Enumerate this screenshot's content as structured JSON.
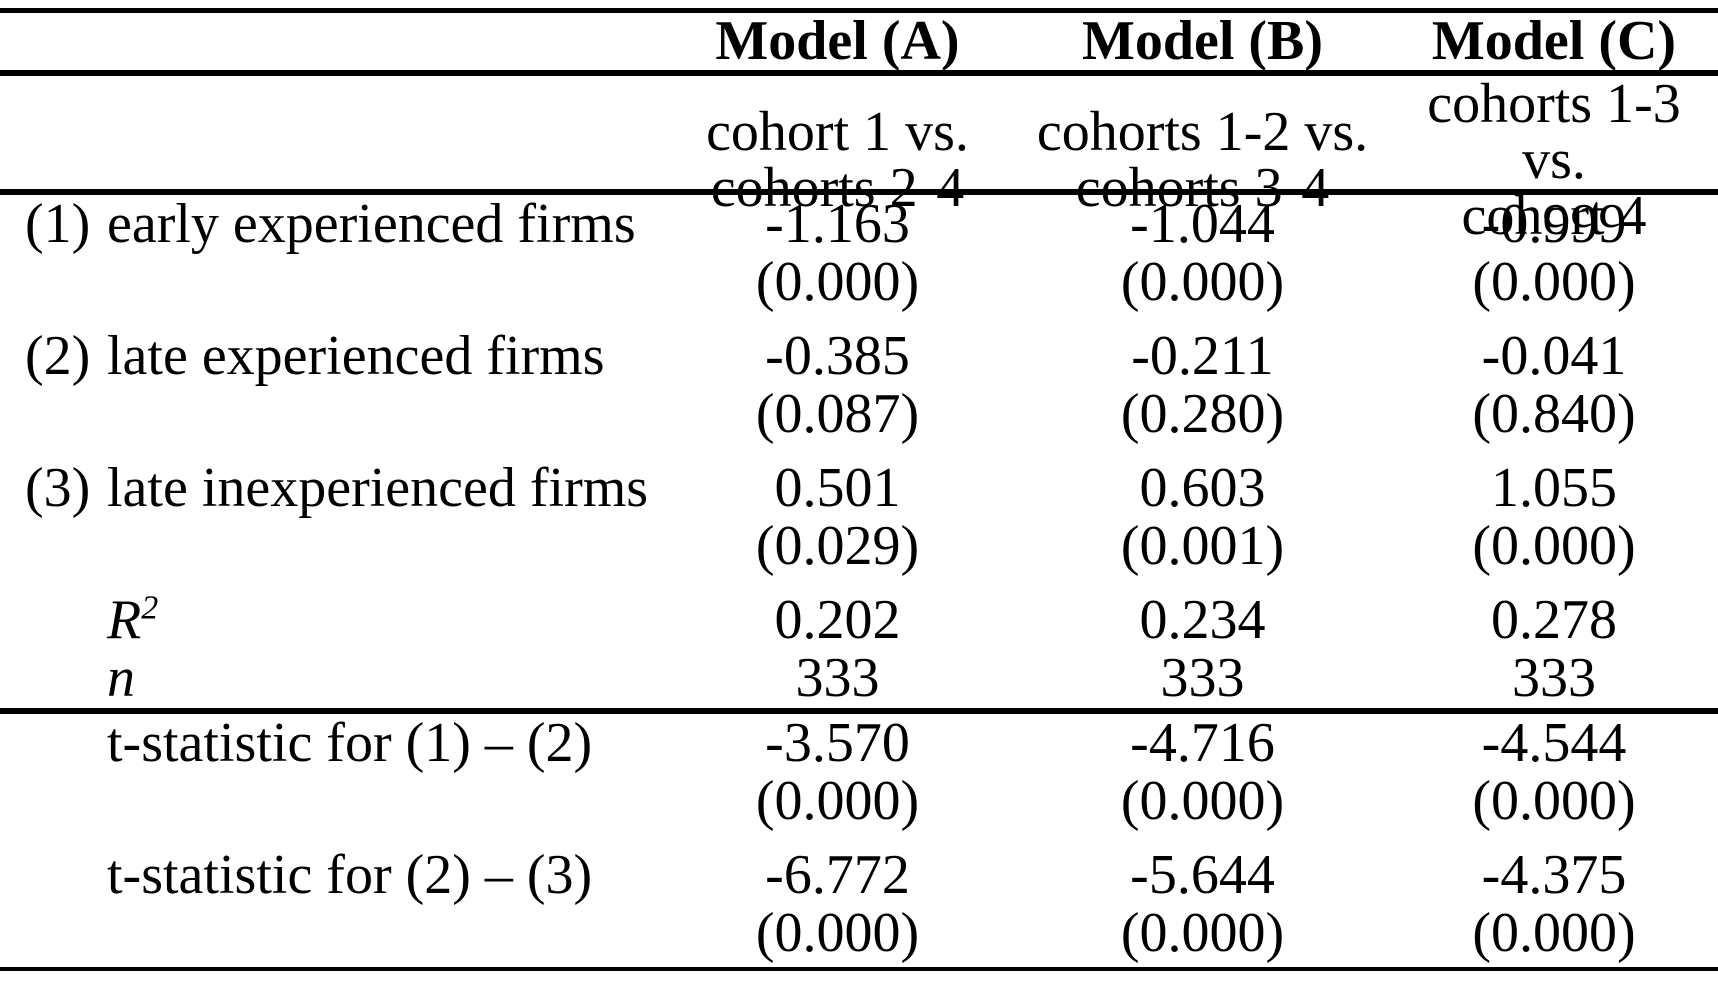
{
  "table": {
    "models": [
      "Model (A)",
      "Model (B)",
      "Model (C)"
    ],
    "comparisons": [
      {
        "line1": "cohort 1 vs.",
        "line2": "cohorts 2-4"
      },
      {
        "line1": "cohorts 1-2 vs.",
        "line2": "cohorts 3-4"
      },
      {
        "line1": "cohorts 1-3 vs.",
        "line2": "cohort 4"
      }
    ],
    "rows": [
      {
        "num": "(1)",
        "label": "early experienced firms",
        "coefs": [
          "-1.163",
          "-1.044",
          "-0.999"
        ],
        "pvalues": [
          "(0.000)",
          "(0.000)",
          "(0.000)"
        ]
      },
      {
        "num": "(2)",
        "label": "late experienced firms",
        "coefs": [
          "-0.385",
          "-0.211",
          "-0.041"
        ],
        "pvalues": [
          "(0.087)",
          "(0.280)",
          "(0.840)"
        ]
      },
      {
        "num": "(3)",
        "label": "late inexperienced firms",
        "coefs": [
          "0.501",
          "0.603",
          "1.055"
        ],
        "pvalues": [
          "(0.029)",
          "(0.001)",
          "(0.000)"
        ]
      }
    ],
    "stats": {
      "r2": {
        "symbol": "R",
        "superscript": "2",
        "values": [
          "0.202",
          "0.234",
          "0.278"
        ]
      },
      "n": {
        "symbol": "n",
        "values": [
          "333",
          "333",
          "333"
        ]
      }
    },
    "tstats": [
      {
        "label": "t-statistic for (1) – (2)",
        "values": [
          "-3.570",
          "-4.716",
          "-4.544"
        ],
        "pvalues": [
          "(0.000)",
          "(0.000)",
          "(0.000)"
        ]
      },
      {
        "label": "t-statistic for (2) – (3)",
        "values": [
          "-6.772",
          "-5.644",
          "-4.375"
        ],
        "pvalues": [
          "(0.000)",
          "(0.000)",
          "(0.000)"
        ]
      }
    ]
  },
  "colors": {
    "background": "#ffffff",
    "text": "#000000",
    "rule": "#000000"
  }
}
